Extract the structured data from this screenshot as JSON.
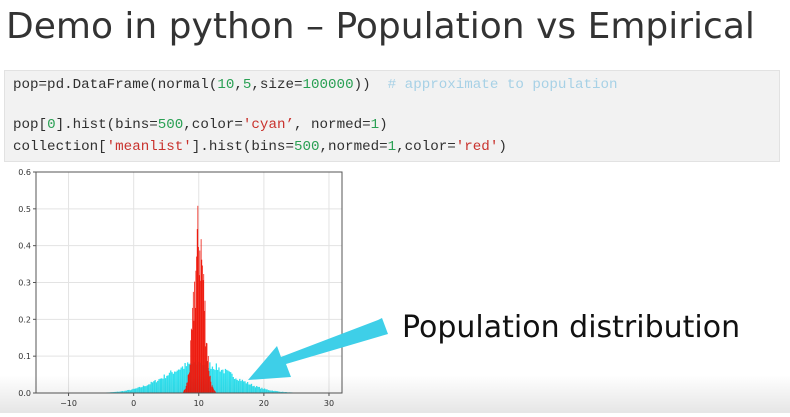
{
  "slide": {
    "title": "Demo in python – Population vs Empirical",
    "callout": "Population distribution"
  },
  "code": {
    "line1": {
      "p1": "pop=pd.DataFrame(normal(",
      "n1": "10",
      "c1": ",",
      "n2": "5",
      "c2": ",size=",
      "n3": "100000",
      "p2": "))  ",
      "comment": "# approximate to population"
    },
    "line2": {
      "p1": "pop[",
      "n1": "0",
      "p2": "].hist(bins=",
      "n2": "500",
      "p3": ",color=",
      "s1": "'cyan’",
      "p4": ", normed=",
      "n3": "1",
      "p5": ")"
    },
    "line3": {
      "p1": "collection[",
      "s1": "'meanlist'",
      "p2": "].hist(bins=",
      "n1": "500",
      "p3": ",normed=",
      "n2": "1",
      "p4": ",color=",
      "s2": "'red'",
      "p5": ")"
    }
  },
  "colors": {
    "population": "#2fe0ee",
    "empirical": "#ee1b0f",
    "arrow": "#3ecfe8"
  },
  "chart_data": {
    "type": "bar",
    "xlim": [
      -15,
      32
    ],
    "ylim": [
      0,
      0.6
    ],
    "xticks": [
      -10,
      0,
      10,
      20,
      30
    ],
    "yticks": [
      0.0,
      0.1,
      0.2,
      0.3,
      0.4,
      0.5,
      0.6
    ],
    "xtick_labels": [
      "−10",
      "0",
      "10",
      "20",
      "30"
    ],
    "ytick_labels": [
      "0.0",
      "0.1",
      "0.2",
      "0.3",
      "0.4",
      "0.5",
      "0.6"
    ],
    "grid": true,
    "series": [
      {
        "color": "cyan",
        "mean": 10,
        "std": 5,
        "peak": 0.08
      },
      {
        "color": "red",
        "mean": 10,
        "std": 0.8,
        "peak": 0.49
      }
    ]
  }
}
